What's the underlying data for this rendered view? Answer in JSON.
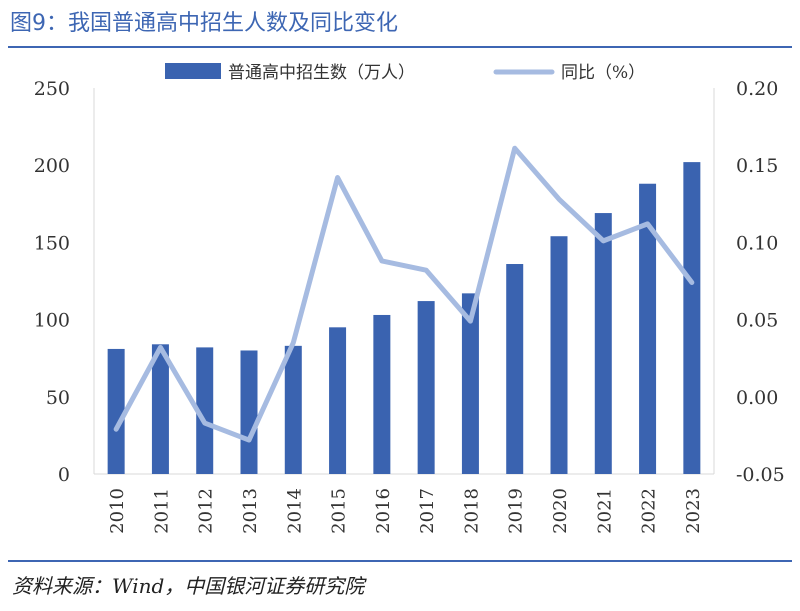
{
  "title": "图9：我国普通高中招生人数及同比变化",
  "source": "资料来源：Wind，中国银河证券研究院",
  "colors": {
    "bar": "#3a63b0",
    "line": "#a6bbe1",
    "accent": "#3d66b3"
  },
  "chart_data": {
    "type": "bar",
    "categories": [
      "2010",
      "2011",
      "2012",
      "2013",
      "2014",
      "2015",
      "2016",
      "2017",
      "2018",
      "2019",
      "2020",
      "2021",
      "2022",
      "2023"
    ],
    "series": [
      {
        "name": "普通高中招生数（万人）",
        "type": "bar",
        "axis": "left",
        "values": [
          81,
          84,
          82,
          80,
          83,
          95,
          103,
          112,
          117,
          136,
          154,
          169,
          188,
          202
        ]
      },
      {
        "name": "同比（%）",
        "type": "line",
        "axis": "right",
        "values": [
          -0.021,
          0.032,
          -0.017,
          -0.028,
          0.035,
          0.142,
          0.088,
          0.082,
          0.049,
          0.161,
          0.128,
          0.101,
          0.112,
          0.074
        ]
      }
    ],
    "y_left": {
      "min": 0,
      "max": 250,
      "ticks": [
        "0",
        "50",
        "100",
        "150",
        "200",
        "250"
      ],
      "tick_values": [
        0,
        50,
        100,
        150,
        200,
        250
      ]
    },
    "y_right": {
      "min": -0.05,
      "max": 0.2,
      "ticks": [
        "-0.05",
        "0.00",
        "0.05",
        "0.10",
        "0.15",
        "0.20"
      ],
      "tick_values": [
        -0.05,
        0,
        0.05,
        0.1,
        0.15,
        0.2
      ]
    },
    "legend": [
      "普通高中招生数（万人）",
      "同比（%）"
    ],
    "legend_position": "top-center",
    "grid": false
  }
}
